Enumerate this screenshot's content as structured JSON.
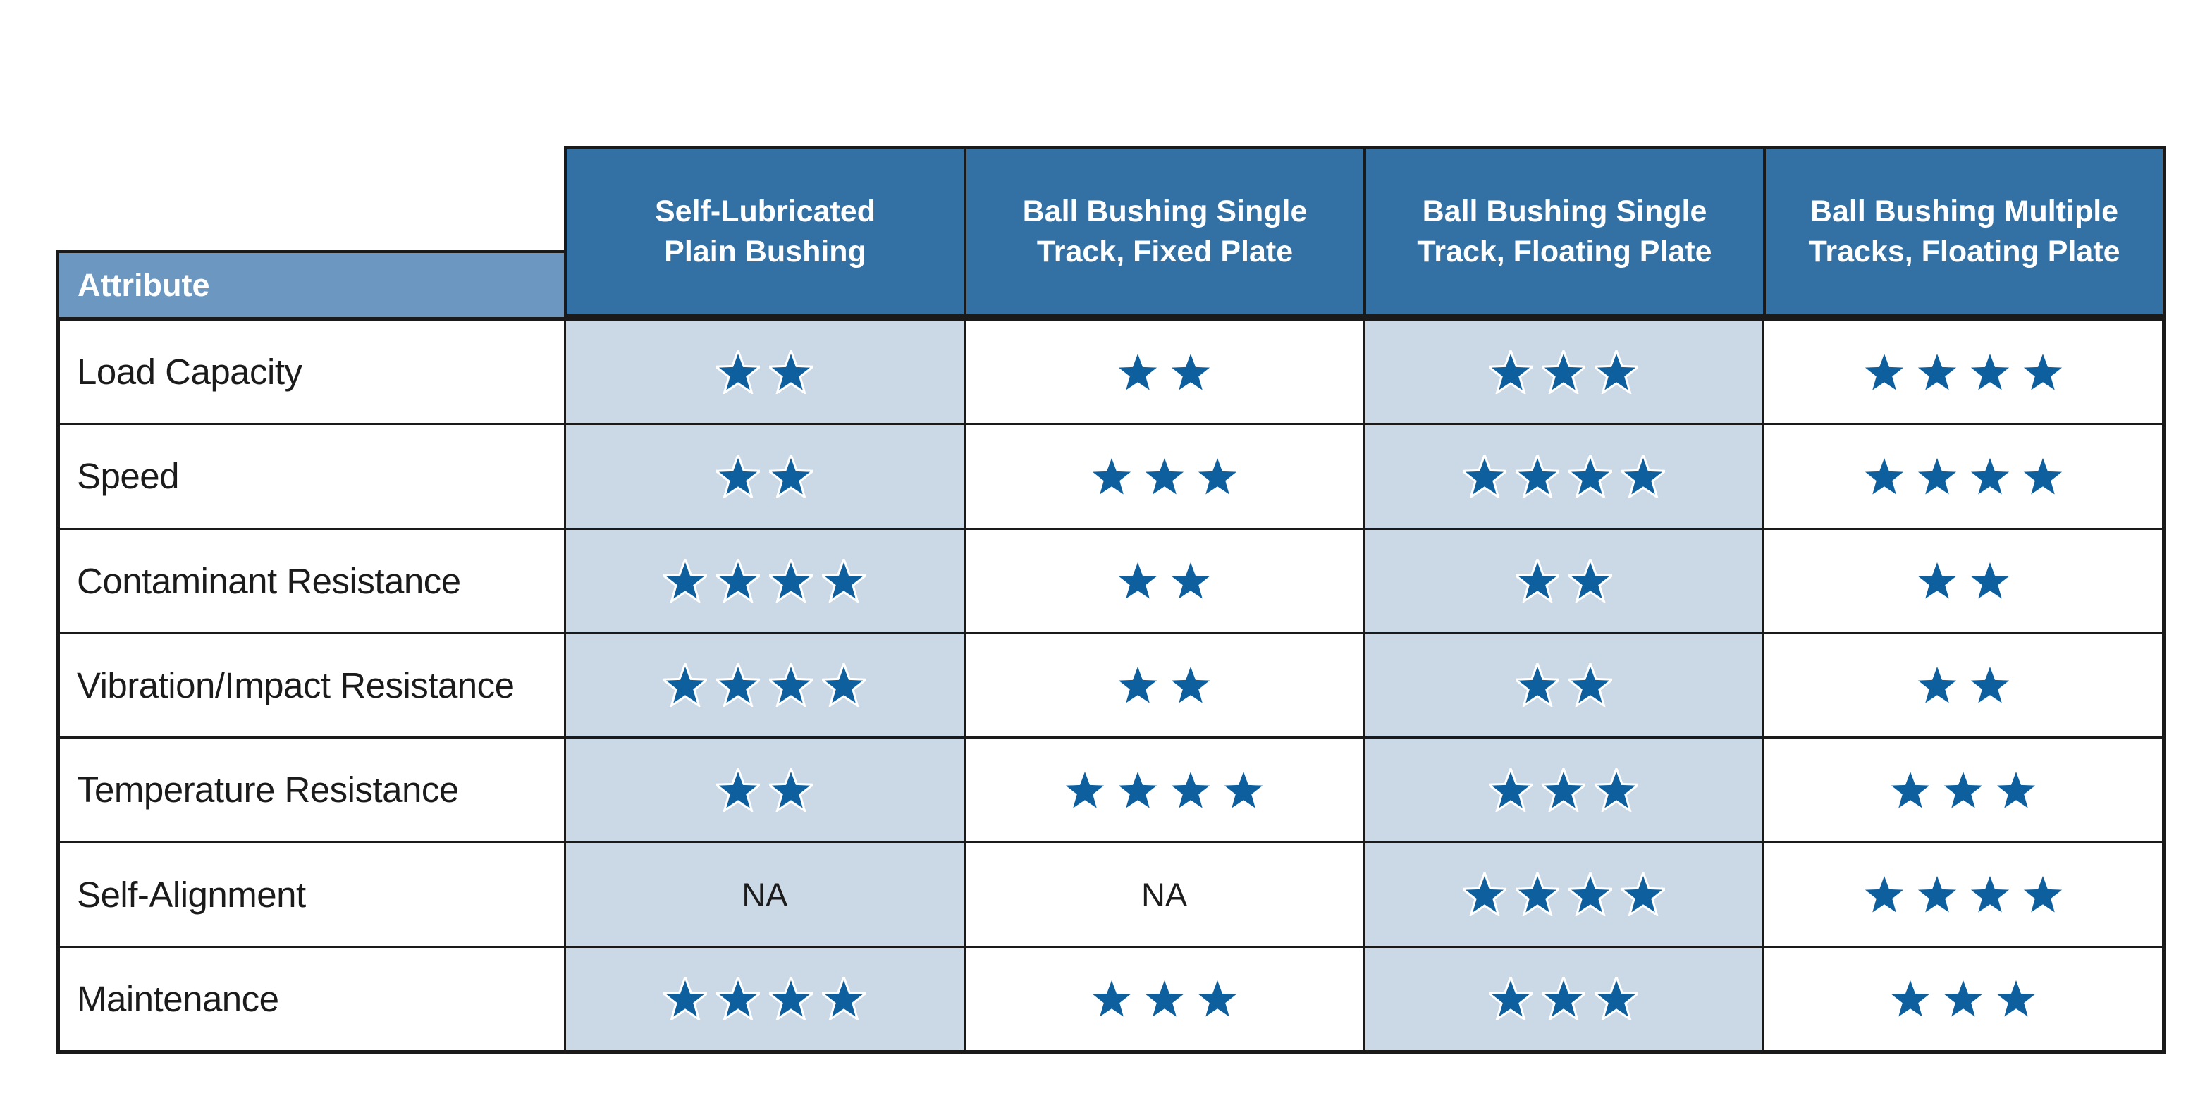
{
  "table": {
    "corner_header": "Attribute",
    "column_headers": [
      "Self-Lubricated\nPlain Bushing",
      "Ball Bushing Single\nTrack, Fixed Plate",
      "Ball Bushing Single\nTrack, Floating Plate",
      "Ball Bushing Multiple\nTracks, Floating Plate"
    ],
    "na_label": "NA",
    "max_rating": 4,
    "rows": [
      {
        "attribute": "Load Capacity",
        "ratings": [
          2,
          2,
          3,
          4
        ]
      },
      {
        "attribute": "Speed",
        "ratings": [
          2,
          3,
          4,
          4
        ]
      },
      {
        "attribute": "Contaminant Resistance",
        "ratings": [
          4,
          2,
          2,
          2
        ]
      },
      {
        "attribute": "Vibration/Impact Resistance",
        "ratings": [
          4,
          2,
          2,
          2
        ]
      },
      {
        "attribute": "Temperature Resistance",
        "ratings": [
          2,
          4,
          3,
          3
        ]
      },
      {
        "attribute": "Self-Alignment",
        "ratings": [
          null,
          null,
          4,
          4
        ]
      },
      {
        "attribute": "Maintenance",
        "ratings": [
          4,
          3,
          3,
          3
        ]
      }
    ]
  },
  "chart_data": {
    "type": "table",
    "title": "",
    "row_header": "Attribute",
    "categories": [
      "Load Capacity",
      "Speed",
      "Contaminant Resistance",
      "Vibration/Impact Resistance",
      "Temperature Resistance",
      "Self-Alignment",
      "Maintenance"
    ],
    "series": [
      {
        "name": "Self-Lubricated Plain Bushing",
        "values": [
          2,
          2,
          4,
          4,
          2,
          null,
          4
        ]
      },
      {
        "name": "Ball Bushing Single Track, Fixed Plate",
        "values": [
          2,
          3,
          2,
          2,
          4,
          null,
          3
        ]
      },
      {
        "name": "Ball Bushing Single Track, Floating Plate",
        "values": [
          3,
          4,
          2,
          2,
          3,
          4,
          3
        ]
      },
      {
        "name": "Ball Bushing Multiple Tracks, Floating Plate",
        "values": [
          4,
          4,
          2,
          2,
          3,
          4,
          3
        ]
      }
    ],
    "rating_scale": [
      0,
      4
    ],
    "na_text": "NA",
    "legend_position": "none",
    "grid": "table-borders"
  },
  "colors": {
    "header_blue": "#3370A4",
    "attribute_bar_blue": "#6B97C0",
    "shaded_cell_blue": "#CBD9E7",
    "star_blue": "#0E5F9E",
    "border_black": "#1A1A1A"
  }
}
